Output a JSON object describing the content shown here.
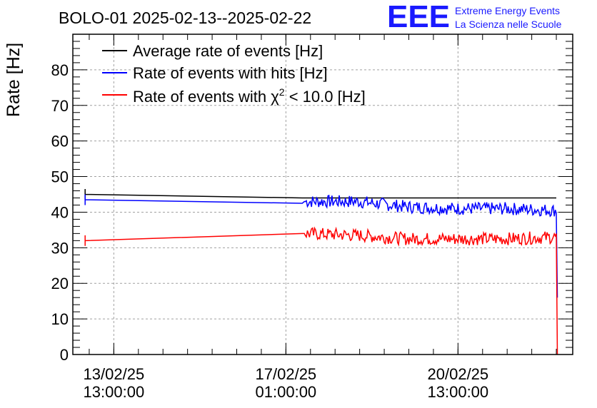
{
  "chart_data": {
    "type": "line",
    "title": "BOLO-01 2025-02-13--2025-02-22",
    "ylabel": "Rate [Hz]",
    "xlabel": "",
    "ylim": [
      0,
      90
    ],
    "y_ticks": [
      0,
      10,
      20,
      30,
      40,
      50,
      60,
      70,
      80
    ],
    "x_axis": {
      "type": "datetime",
      "start": "2025-02-12T17:00:00",
      "end": "2025-02-22T21:00:00"
    },
    "x_ticks": [
      {
        "x": "2025-02-13T13:00:00",
        "date": "13/02/25",
        "time": "13:00:00"
      },
      {
        "x": "2025-02-17T01:00:00",
        "date": "17/02/25",
        "time": "01:00:00"
      },
      {
        "x": "2025-02-20T13:00:00",
        "date": "20/02/25",
        "time": "13:00:00"
      }
    ],
    "grid": true,
    "legend_position": "top-left",
    "logo": {
      "text": "EEE",
      "line1": "Extreme Energy Events",
      "line2": "La Scienza nelle Scuole",
      "color": "#1a1aff"
    },
    "series": [
      {
        "name": "Average rate of events [Hz]",
        "color": "#000000",
        "noise": 0,
        "points": [
          [
            "2025-02-12T23:00:00",
            45.0
          ],
          [
            "2025-02-17T09:00:00",
            44.0
          ],
          [
            "2025-02-22T13:00:00",
            44.0
          ]
        ]
      },
      {
        "name": "Rate of events with hits [Hz]",
        "color": "#0000ff",
        "noise": 1.8,
        "points": [
          [
            "2025-02-12T23:00:00",
            43.5
          ],
          [
            "2025-02-17T09:00:00",
            42.5
          ],
          [
            "2025-02-17T10:00:00",
            43.0
          ],
          [
            "2025-02-18T12:00:00",
            43.0
          ],
          [
            "2025-02-19T12:00:00",
            41.5
          ],
          [
            "2025-02-20T12:00:00",
            41.0
          ],
          [
            "2025-02-21T12:00:00",
            41.0
          ],
          [
            "2025-02-22T13:00:00",
            40.5
          ],
          [
            "2025-02-22T13:30:00",
            16.0
          ]
        ]
      },
      {
        "name": "Rate of events with",
        "name_symbol": "χ",
        "name_sup": "2",
        "name_suffix": " < 10.0 [Hz]",
        "color": "#ff0000",
        "noise": 1.8,
        "points": [
          [
            "2025-02-12T23:00:00",
            32.0
          ],
          [
            "2025-02-17T09:00:00",
            34.0
          ],
          [
            "2025-02-17T10:00:00",
            34.0
          ],
          [
            "2025-02-18T12:00:00",
            33.5
          ],
          [
            "2025-02-19T12:00:00",
            32.5
          ],
          [
            "2025-02-20T12:00:00",
            32.5
          ],
          [
            "2025-02-21T12:00:00",
            32.5
          ],
          [
            "2025-02-22T13:00:00",
            33.0
          ],
          [
            "2025-02-22T13:30:00",
            0.0
          ]
        ]
      }
    ]
  }
}
